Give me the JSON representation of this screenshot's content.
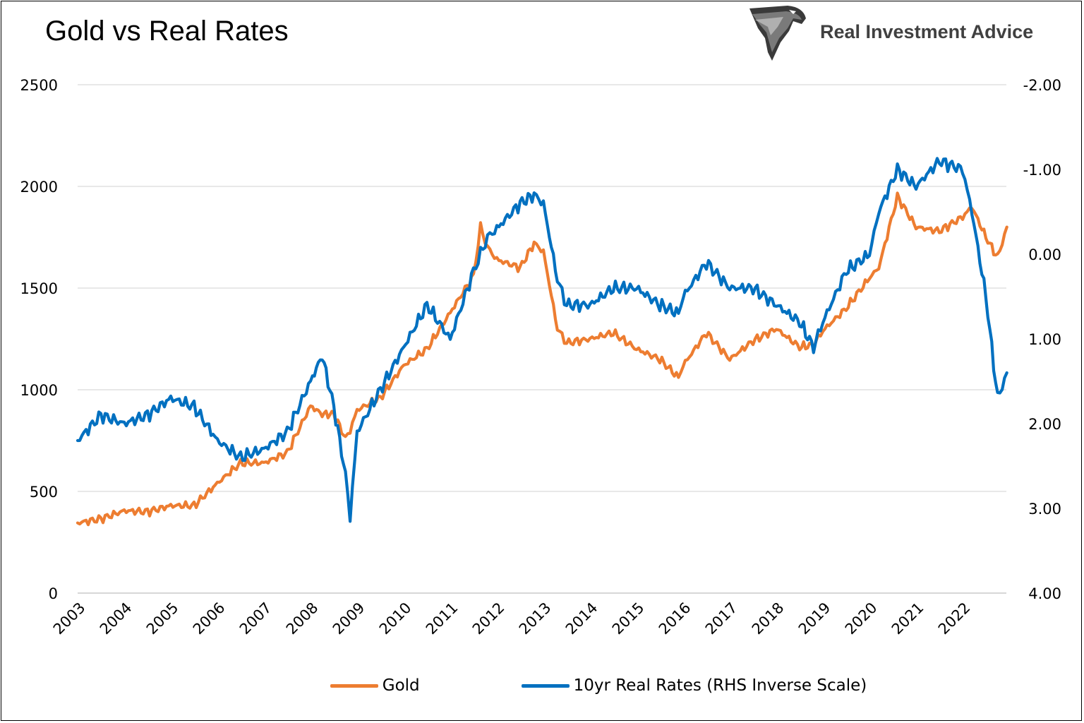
{
  "header": {
    "title": "Gold vs Real Rates",
    "brand": "Real Investment Advice",
    "logo_icon": "eagle-head-icon"
  },
  "colors": {
    "gold": "#ED7D31",
    "real_rates": "#0070C0",
    "grid": "#D9D9D9",
    "text": "#000000"
  },
  "chart_data": {
    "type": "line",
    "title": "Gold vs Real Rates",
    "x": [
      2003.0,
      2003.5,
      2004.0,
      2004.5,
      2005.0,
      2005.5,
      2006.0,
      2006.5,
      2007.0,
      2007.5,
      2008.0,
      2008.25,
      2008.5,
      2008.75,
      2008.85,
      2009.0,
      2009.5,
      2010.0,
      2010.5,
      2011.0,
      2011.5,
      2011.65,
      2011.8,
      2012.0,
      2012.5,
      2012.8,
      2013.0,
      2013.3,
      2013.5,
      2014.0,
      2014.5,
      2015.0,
      2015.5,
      2015.9,
      2016.0,
      2016.5,
      2017.0,
      2017.5,
      2018.0,
      2018.5,
      2018.8,
      2019.0,
      2019.5,
      2020.0,
      2020.2,
      2020.6,
      2021.0,
      2021.5,
      2022.0,
      2022.2,
      2022.5,
      2022.75,
      2022.95
    ],
    "x_ticks": [
      "2003",
      "2004",
      "2005",
      "2006",
      "2007",
      "2008",
      "2009",
      "2010",
      "2011",
      "2012",
      "2013",
      "2014",
      "2015",
      "2016",
      "2017",
      "2018",
      "2019",
      "2020",
      "2021",
      "2022"
    ],
    "y_left_ticks": [
      "0",
      "500",
      "1000",
      "1500",
      "2000",
      "2500"
    ],
    "y_left_range": [
      0,
      2500
    ],
    "y_right_ticks": [
      "-2.00",
      "-1.00",
      "0.00",
      "1.00",
      "2.00",
      "3.00",
      "4.00"
    ],
    "y_right_range": [
      4.0,
      -2.0
    ],
    "y_right_inverted": true,
    "grid": true,
    "legend_position": "bottom",
    "series": [
      {
        "name": "Gold",
        "axis": "left",
        "values": [
          345,
          365,
          405,
          400,
          430,
          430,
          540,
          640,
          640,
          690,
          920,
          880,
          880,
          760,
          800,
          900,
          960,
          1120,
          1200,
          1380,
          1560,
          1800,
          1700,
          1640,
          1600,
          1720,
          1680,
          1300,
          1230,
          1250,
          1280,
          1200,
          1150,
          1060,
          1120,
          1280,
          1150,
          1240,
          1300,
          1210,
          1220,
          1290,
          1400,
          1550,
          1600,
          1950,
          1800,
          1780,
          1850,
          1900,
          1750,
          1650,
          1800
        ]
      },
      {
        "name": "10yr Real Rates (RHS Inverse Scale)",
        "axis": "right",
        "values": [
          2.2,
          1.9,
          2.0,
          1.9,
          1.7,
          1.8,
          2.2,
          2.4,
          2.3,
          2.1,
          1.5,
          1.2,
          1.8,
          2.6,
          3.1,
          2.1,
          1.6,
          1.1,
          0.6,
          1.0,
          0.2,
          0.0,
          -0.2,
          -0.3,
          -0.6,
          -0.7,
          -0.6,
          0.3,
          0.6,
          0.6,
          0.4,
          0.4,
          0.6,
          0.7,
          0.5,
          0.1,
          0.4,
          0.4,
          0.6,
          0.8,
          1.1,
          0.8,
          0.2,
          0.0,
          -0.5,
          -1.0,
          -0.8,
          -1.1,
          -1.0,
          -0.5,
          0.5,
          1.7,
          1.4
        ]
      }
    ]
  },
  "legend": {
    "gold_label": "Gold",
    "real_rates_label": "10yr Real Rates (RHS Inverse Scale)"
  }
}
